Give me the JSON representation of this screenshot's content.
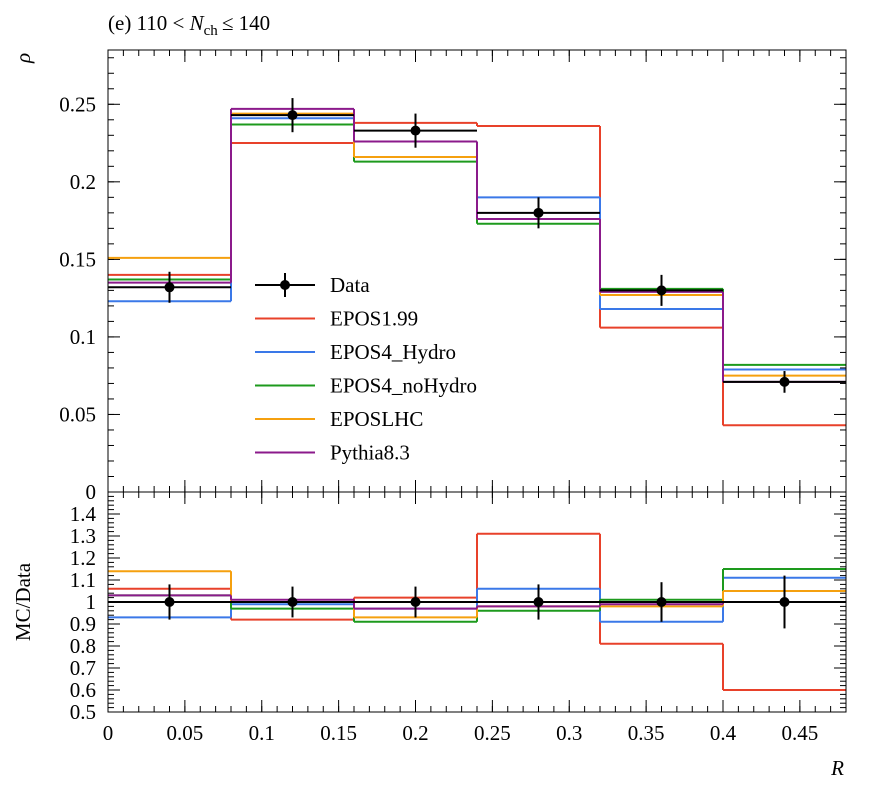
{
  "chart_data": [
    {
      "type": "histogram",
      "title_parts": [
        "(e) 110 <",
        "N",
        "ch",
        "≤ 140"
      ],
      "ylabel": "ρ",
      "bins": [
        0,
        0.08,
        0.16,
        0.24,
        0.32,
        0.4,
        0.48
      ],
      "xlim": [
        0,
        0.48
      ],
      "ylim": [
        0,
        0.285
      ],
      "yticks": [
        0,
        0.05,
        0.1,
        0.15,
        0.2,
        0.25
      ],
      "xticks": [
        0,
        0.05,
        0.1,
        0.15,
        0.2,
        0.25,
        0.3,
        0.35,
        0.4,
        0.45
      ],
      "legend": "center-left",
      "points": {
        "name": "Data",
        "color": "#000000",
        "x": [
          0.04,
          0.12,
          0.2,
          0.28,
          0.36,
          0.44
        ],
        "values": [
          0.132,
          0.243,
          0.233,
          0.18,
          0.13,
          0.071
        ],
        "errors": [
          0.01,
          0.011,
          0.011,
          0.01,
          0.01,
          0.007
        ]
      },
      "series": [
        {
          "name": "EPOS1.99",
          "color": "#e8412a",
          "values": [
            0.14,
            0.225,
            0.238,
            0.236,
            0.106,
            0.043
          ]
        },
        {
          "name": "EPOS4_Hydro",
          "color": "#3a78e8",
          "values": [
            0.123,
            0.241,
            0.226,
            0.19,
            0.118,
            0.079
          ]
        },
        {
          "name": "EPOS4_noHydro",
          "color": "#1d9a1d",
          "values": [
            0.137,
            0.237,
            0.213,
            0.173,
            0.131,
            0.082
          ]
        },
        {
          "name": "EPOSLHC",
          "color": "#f5a00f",
          "values": [
            0.151,
            0.244,
            0.216,
            0.176,
            0.127,
            0.075
          ]
        },
        {
          "name": "Pythia8.3",
          "color": "#8b1a8b",
          "values": [
            0.135,
            0.247,
            0.226,
            0.176,
            0.129,
            0.071
          ]
        }
      ]
    },
    {
      "type": "histogram",
      "ylabel": "MC/Data",
      "xlabel": "R",
      "bins": [
        0,
        0.08,
        0.16,
        0.24,
        0.32,
        0.4,
        0.48
      ],
      "xlim": [
        0,
        0.48
      ],
      "ylim": [
        0.5,
        1.5
      ],
      "yticks": [
        0.5,
        0.6,
        0.7,
        0.8,
        0.9,
        1,
        1.1,
        1.2,
        1.3,
        1.4
      ],
      "xticks": [
        0,
        0.05,
        0.1,
        0.15,
        0.2,
        0.25,
        0.3,
        0.35,
        0.4,
        0.45
      ],
      "points": {
        "color": "#000000",
        "x": [
          0.04,
          0.12,
          0.2,
          0.28,
          0.36,
          0.44
        ],
        "values": [
          1,
          1,
          1,
          1,
          1,
          1
        ],
        "errors": [
          0.08,
          0.07,
          0.07,
          0.08,
          0.09,
          0.12
        ]
      },
      "series": [
        {
          "color": "#e8412a",
          "values": [
            1.06,
            0.92,
            1.02,
            1.31,
            0.81,
            0.6
          ]
        },
        {
          "color": "#3a78e8",
          "values": [
            0.93,
            0.99,
            0.97,
            1.06,
            0.91,
            1.11
          ]
        },
        {
          "color": "#1d9a1d",
          "values": [
            1.03,
            0.97,
            0.91,
            0.96,
            1.01,
            1.15
          ]
        },
        {
          "color": "#f5a00f",
          "values": [
            1.14,
            1.0,
            0.93,
            0.98,
            0.98,
            1.05
          ]
        },
        {
          "color": "#8b1a8b",
          "values": [
            1.03,
            1.01,
            0.97,
            0.98,
            0.99,
            1.0
          ]
        }
      ]
    }
  ]
}
